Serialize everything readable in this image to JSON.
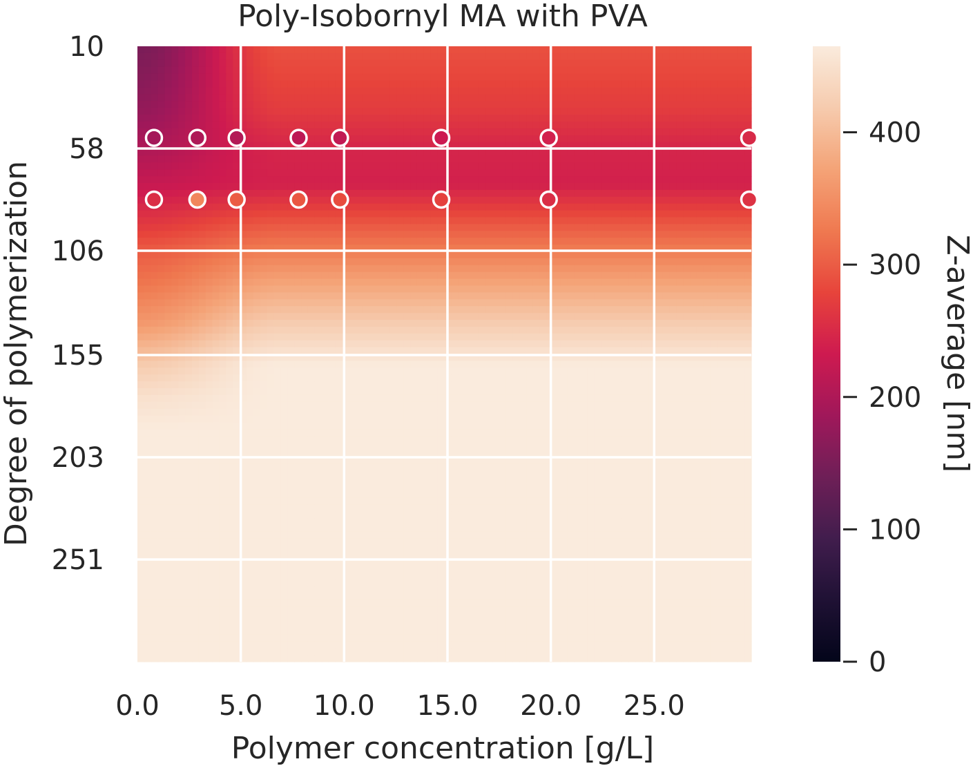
{
  "chart_data": {
    "type": "heatmap",
    "title": "Poly-Isobornyl MA with PVA",
    "xlabel": "Polymer concentration [g/L]",
    "ylabel": "Degree of polymerization",
    "xlim": [
      0,
      29.7
    ],
    "ylim": [
      10,
      299
    ],
    "y_inverted": true,
    "x_ticks": [
      0,
      5,
      10,
      15,
      20,
      25
    ],
    "x_tick_labels": [
      "0.0",
      "5.0",
      "10.0",
      "15.0",
      "20.0",
      "25.0"
    ],
    "y_ticks": [
      10,
      58,
      106,
      155,
      203,
      251
    ],
    "y_tick_labels": [
      "10",
      "58",
      "106",
      "155",
      "203",
      "251"
    ],
    "grid": true,
    "colormap": "rocket",
    "colorbar": {
      "label": "Z-average [nm]",
      "range": [
        0,
        465
      ],
      "ticks": [
        0,
        100,
        200,
        300,
        400
      ],
      "tick_labels": [
        "0",
        "100",
        "200",
        "300",
        "400"
      ]
    },
    "surface_model": {
      "description": "Z-average fill value as a function of DP (rows) and concentration (columns)",
      "dp_nodes": [
        10,
        40,
        58,
        75,
        95,
        106,
        120,
        140,
        160,
        175,
        190,
        299
      ],
      "conc_low_nodes_g_per_L": [
        0,
        1,
        2,
        3,
        4,
        5,
        6,
        7,
        29.7
      ],
      "values_at_conc_0": [
        150,
        175,
        200,
        225,
        270,
        300,
        320,
        360,
        420,
        450,
        465,
        465
      ],
      "values_at_conc_29_7": [
        290,
        270,
        245,
        240,
        300,
        330,
        370,
        420,
        465,
        465,
        465,
        465
      ],
      "max_value": 465
    },
    "measured_points": [
      {
        "x": 0.8,
        "y": 53,
        "z": 190
      },
      {
        "x": 2.9,
        "y": 53,
        "z": 200
      },
      {
        "x": 4.8,
        "y": 53,
        "z": 205
      },
      {
        "x": 7.8,
        "y": 53,
        "z": 215
      },
      {
        "x": 9.8,
        "y": 53,
        "z": 220
      },
      {
        "x": 14.7,
        "y": 53,
        "z": 230
      },
      {
        "x": 19.9,
        "y": 53,
        "z": 240
      },
      {
        "x": 29.6,
        "y": 53,
        "z": 250
      },
      {
        "x": 0.8,
        "y": 82,
        "z": 255
      },
      {
        "x": 2.9,
        "y": 82,
        "z": 340
      },
      {
        "x": 4.8,
        "y": 82,
        "z": 300
      },
      {
        "x": 7.8,
        "y": 82,
        "z": 295
      },
      {
        "x": 9.8,
        "y": 82,
        "z": 285
      },
      {
        "x": 14.7,
        "y": 82,
        "z": 275
      },
      {
        "x": 19.9,
        "y": 82,
        "z": 255
      },
      {
        "x": 29.6,
        "y": 82,
        "z": 260
      }
    ]
  }
}
